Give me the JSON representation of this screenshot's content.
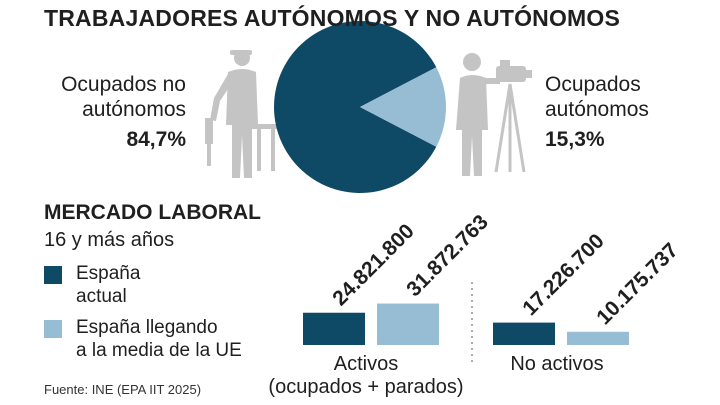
{
  "title": "TRABAJADORES AUTÓNOMOS Y NO AUTÓNOMOS",
  "pie": {
    "left_label_line1": "Ocupados no",
    "left_label_line2": "autónomos",
    "left_pct": "84,7%",
    "right_label_line1": "Ocupados",
    "right_label_line2": "autónomos",
    "right_pct": "15,3%"
  },
  "section2": {
    "title": "MERCADO LABORAL",
    "subtitle": "16 y más años"
  },
  "legend": {
    "item1_line1": "España",
    "item1_line2": "actual",
    "item2_line1": "España llegando",
    "item2_line2": "a la media de la UE"
  },
  "source": "Fuente: INE (EPA IIT 2025)",
  "colors": {
    "dark": "#0e4966",
    "light": "#97bdd4",
    "silhouette": "#c4c4c4"
  },
  "chart_data": [
    {
      "type": "pie",
      "title": "TRABAJADORES AUTÓNOMOS Y NO AUTÓNOMOS",
      "slices": [
        {
          "label": "Ocupados no autónomos",
          "value": 84.7,
          "display": "84,7%"
        },
        {
          "label": "Ocupados autónomos",
          "value": 15.3,
          "display": "15,3%"
        }
      ]
    },
    {
      "type": "bar",
      "title": "MERCADO LABORAL",
      "subtitle": "16 y más años",
      "groups": [
        {
          "label_line1": "Activos",
          "label_line2": "(ocupados + parados)"
        },
        {
          "label_line1": "No activos",
          "label_line2": ""
        }
      ],
      "series": [
        {
          "name": "España actual",
          "values": [
            24821800,
            17226700
          ],
          "labels": [
            "24.821.800",
            "17.226.700"
          ]
        },
        {
          "name": "España llegando a la media de la UE",
          "values": [
            31872763,
            10175737
          ],
          "labels": [
            "31.872.763",
            "10.175.737"
          ]
        }
      ]
    }
  ]
}
